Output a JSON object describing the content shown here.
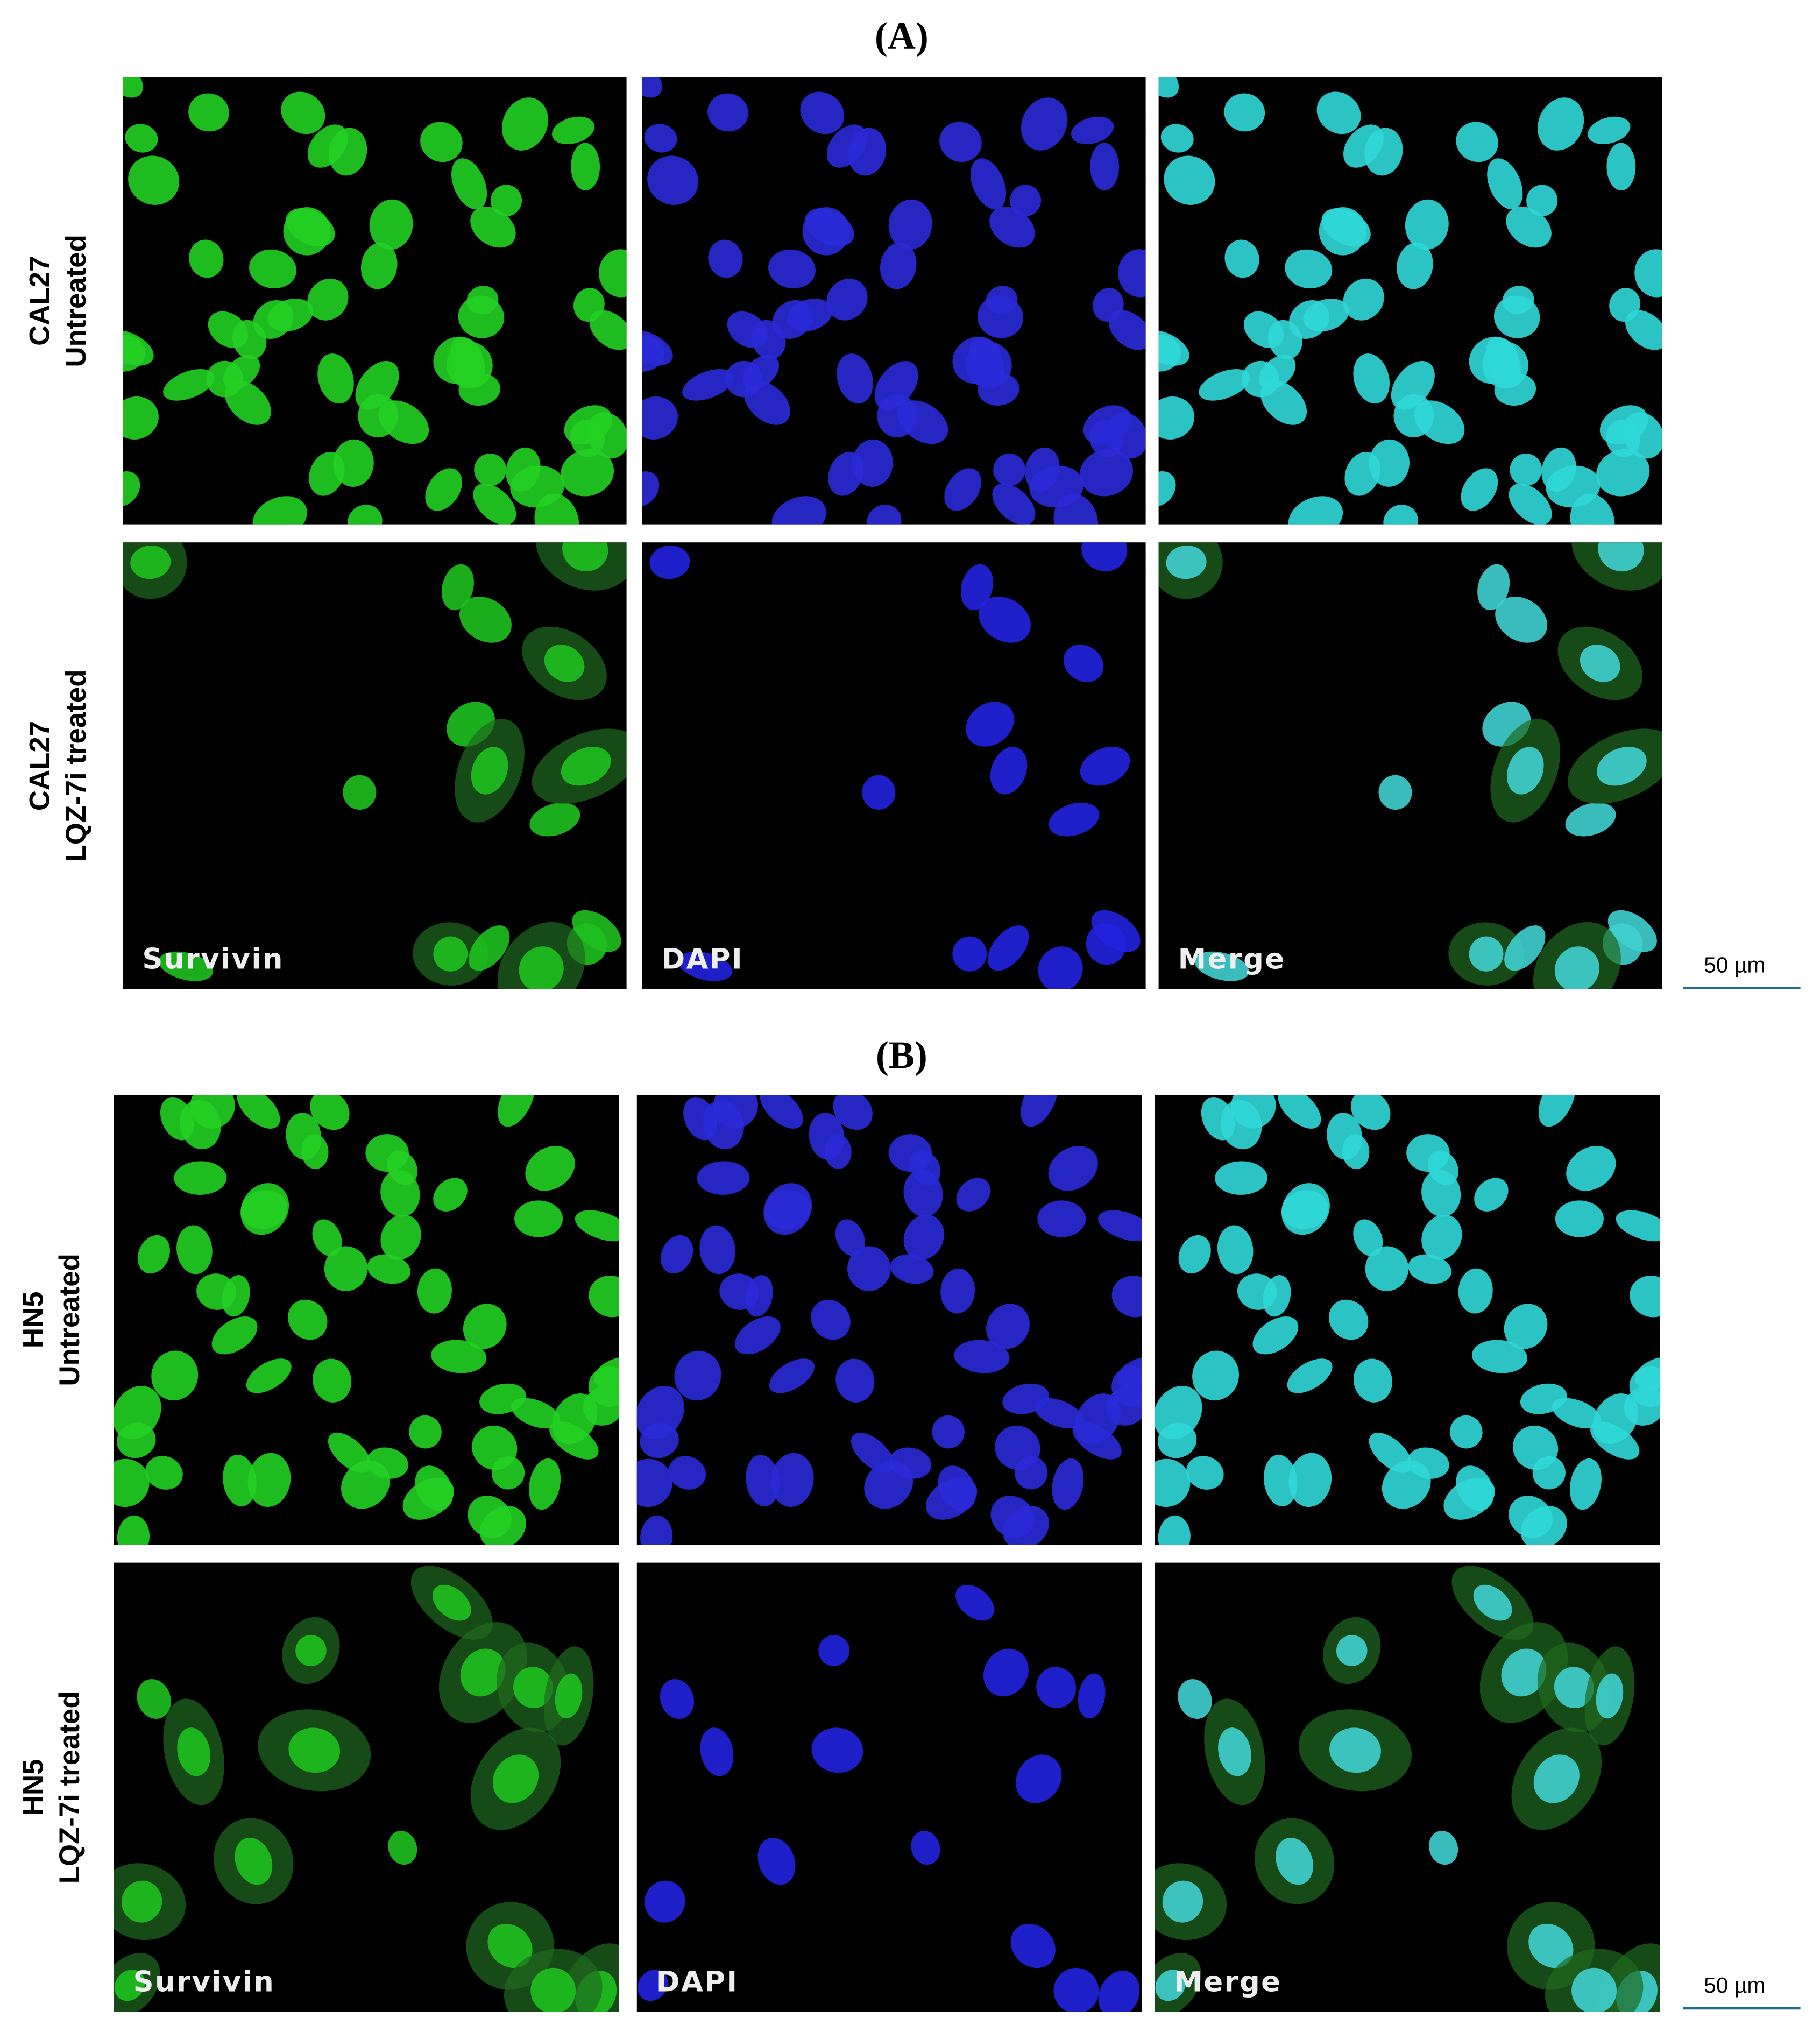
{
  "panels": [
    {
      "label": "(A)",
      "rows": [
        {
          "line1": "CAL27",
          "line2": "Untreated"
        },
        {
          "line1": "CAL27",
          "line2": "LQZ-7i treated"
        }
      ],
      "channels": [
        "Survivin",
        "DAPI",
        "Merge"
      ],
      "scale_bar": "50 µm"
    },
    {
      "label": "(B)",
      "rows": [
        {
          "line1": "HN5",
          "line2": "Untreated"
        },
        {
          "line1": "HN5",
          "line2": "LQZ-7i treated"
        }
      ],
      "channels": [
        "Survivin",
        "DAPI",
        "Merge"
      ],
      "scale_bar": "50 µm"
    }
  ]
}
